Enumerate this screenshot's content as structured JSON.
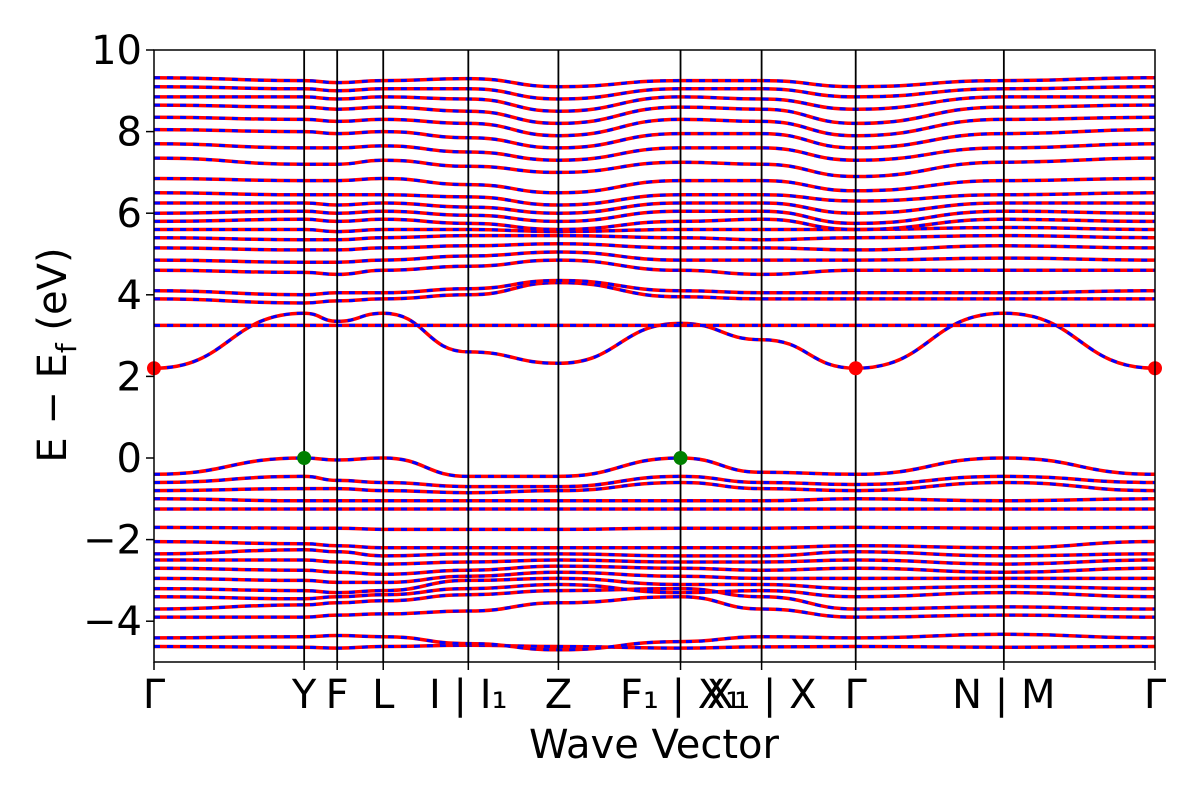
{
  "chart_data": {
    "type": "line",
    "title": "",
    "xlabel": "Wave Vector",
    "ylabel": "E − E",
    "ylabel_subscript": "f",
    "ylabel_unit": " (eV)",
    "ylim": [
      -5,
      10
    ],
    "yticks": [
      {
        "value": 10,
        "label": "10"
      },
      {
        "value": 8,
        "label": "8"
      },
      {
        "value": 6,
        "label": "6"
      },
      {
        "value": 4,
        "label": "4"
      },
      {
        "value": 2,
        "label": "2"
      },
      {
        "value": 0,
        "label": "0"
      },
      {
        "value": -2,
        "label": "−2"
      },
      {
        "value": -4,
        "label": "−4"
      }
    ],
    "xlim": [
      0,
      10
    ],
    "kpoints": [
      {
        "x": 0.0,
        "label": "Γ"
      },
      {
        "x": 1.5,
        "label": "Y"
      },
      {
        "x": 1.83,
        "label": "F"
      },
      {
        "x": 2.29,
        "label": "L"
      },
      {
        "x": 3.14,
        "label": "I | I₁"
      },
      {
        "x": 4.04,
        "label": "Z"
      },
      {
        "x": 5.26,
        "label": "F₁ | X₁"
      },
      {
        "x": 6.07,
        "label": "X₁ | X"
      },
      {
        "x": 7.01,
        "label": "Γ"
      },
      {
        "x": 8.49,
        "label": "N | M"
      },
      {
        "x": 10.0,
        "label": "Γ"
      }
    ],
    "band_style": {
      "spin_up_color": "#ff0000",
      "spin_down_color": "#0000ff",
      "spin_down_dashed": true
    },
    "vbm_points": [
      {
        "x": 1.5,
        "y": 0.0
      },
      {
        "x": 5.26,
        "y": 0.0
      }
    ],
    "cbm_points": [
      {
        "x": 0.0,
        "y": 2.2
      },
      {
        "x": 7.01,
        "y": 2.2
      },
      {
        "x": 10.0,
        "y": 2.2
      }
    ],
    "marker_colors": {
      "vbm": "#008000",
      "cbm": "#ff0000"
    },
    "bands": [
      {
        "name": "band-1",
        "values": [
          -4.62,
          -4.64,
          -4.66,
          -4.62,
          -4.59,
          -4.62,
          -4.66,
          -4.63,
          -4.62,
          -4.64,
          -4.62
        ]
      },
      {
        "name": "band-2",
        "values": [
          -4.41,
          -4.38,
          -4.35,
          -4.38,
          -4.55,
          -4.7,
          -4.5,
          -4.38,
          -4.41,
          -4.32,
          -4.41
        ]
      },
      {
        "name": "band-3",
        "values": [
          -3.9,
          -3.9,
          -3.85,
          -3.82,
          -3.75,
          -3.55,
          -3.4,
          -3.7,
          -3.9,
          -3.85,
          -3.9
        ]
      },
      {
        "name": "band-4",
        "values": [
          -3.7,
          -3.6,
          -3.55,
          -3.5,
          -3.35,
          -3.25,
          -3.2,
          -3.4,
          -3.7,
          -3.65,
          -3.7
        ]
      },
      {
        "name": "band-5",
        "values": [
          -3.4,
          -3.45,
          -3.4,
          -3.35,
          -3.2,
          -3.1,
          -3.3,
          -3.25,
          -3.4,
          -3.3,
          -3.4
        ]
      },
      {
        "name": "band-6",
        "values": [
          -3.2,
          -3.25,
          -3.3,
          -3.25,
          -3.0,
          -2.95,
          -3.1,
          -3.1,
          -3.2,
          -3.15,
          -3.2
        ]
      },
      {
        "name": "band-7",
        "values": [
          -2.95,
          -3.0,
          -3.05,
          -3.05,
          -2.9,
          -2.8,
          -2.9,
          -2.95,
          -2.95,
          -2.95,
          -2.95
        ]
      },
      {
        "name": "band-8",
        "values": [
          -2.7,
          -2.75,
          -2.8,
          -2.85,
          -2.75,
          -2.65,
          -2.7,
          -2.75,
          -2.7,
          -2.8,
          -2.7
        ]
      },
      {
        "name": "band-9",
        "values": [
          -2.5,
          -2.5,
          -2.55,
          -2.6,
          -2.55,
          -2.5,
          -2.55,
          -2.55,
          -2.5,
          -2.6,
          -2.5
        ]
      },
      {
        "name": "band-10",
        "values": [
          -2.35,
          -2.25,
          -2.3,
          -2.4,
          -2.35,
          -2.35,
          -2.4,
          -2.4,
          -2.3,
          -2.4,
          -2.35
        ]
      },
      {
        "name": "band-11",
        "values": [
          -2.05,
          -2.1,
          -2.15,
          -2.2,
          -2.2,
          -2.2,
          -2.2,
          -2.2,
          -2.15,
          -2.2,
          -2.05
        ]
      },
      {
        "name": "band-12",
        "values": [
          -1.7,
          -1.72,
          -1.72,
          -1.75,
          -1.75,
          -1.75,
          -1.72,
          -1.72,
          -1.7,
          -1.72,
          -1.7
        ]
      },
      {
        "name": "band-13",
        "values": [
          -1.25,
          -1.25,
          -1.25,
          -1.25,
          -1.25,
          -1.25,
          -1.25,
          -1.25,
          -1.25,
          -1.25,
          -1.25
        ]
      },
      {
        "name": "band-14",
        "values": [
          -1.0,
          -1.05,
          -1.05,
          -1.05,
          -1.05,
          -1.05,
          -1.05,
          -1.05,
          -1.0,
          -1.05,
          -1.0
        ]
      },
      {
        "name": "band-15",
        "values": [
          -0.8,
          -0.75,
          -0.75,
          -0.8,
          -0.85,
          -0.8,
          -0.6,
          -0.75,
          -0.8,
          -0.6,
          -0.8
        ]
      },
      {
        "name": "band-16",
        "values": [
          -0.6,
          -0.45,
          -0.55,
          -0.6,
          -0.7,
          -0.7,
          -0.45,
          -0.6,
          -0.65,
          -0.45,
          -0.6
        ]
      },
      {
        "name": "band-17",
        "values": [
          -0.4,
          0.0,
          -0.05,
          0.0,
          -0.45,
          -0.45,
          0.0,
          -0.35,
          -0.4,
          0.0,
          -0.4
        ]
      },
      {
        "name": "band-18",
        "values": [
          2.2,
          3.55,
          3.35,
          3.55,
          2.6,
          2.32,
          3.3,
          2.9,
          2.2,
          3.55,
          2.2
        ]
      },
      {
        "name": "band-19",
        "values": [
          3.25,
          3.25,
          3.25,
          3.25,
          3.25,
          3.25,
          3.25,
          3.25,
          3.25,
          3.25,
          3.25
        ]
      },
      {
        "name": "band-20",
        "values": [
          3.9,
          3.8,
          3.85,
          3.9,
          4.0,
          4.3,
          3.95,
          3.9,
          3.9,
          3.9,
          3.9
        ]
      },
      {
        "name": "band-21",
        "values": [
          4.1,
          4.0,
          4.05,
          4.05,
          4.15,
          4.35,
          4.1,
          4.05,
          4.05,
          4.05,
          4.1
        ]
      },
      {
        "name": "band-22",
        "values": [
          4.6,
          4.55,
          4.5,
          4.6,
          4.7,
          4.85,
          4.6,
          4.5,
          4.6,
          4.6,
          4.6
        ]
      },
      {
        "name": "band-23",
        "values": [
          4.85,
          4.8,
          4.8,
          4.85,
          4.95,
          5.05,
          4.85,
          4.85,
          4.85,
          4.9,
          4.85
        ]
      },
      {
        "name": "band-24",
        "values": [
          5.15,
          5.1,
          5.1,
          5.15,
          5.2,
          5.25,
          5.15,
          5.15,
          5.1,
          5.2,
          5.15
        ]
      },
      {
        "name": "band-25",
        "values": [
          5.4,
          5.35,
          5.35,
          5.4,
          5.45,
          5.45,
          5.4,
          5.35,
          5.4,
          5.45,
          5.4
        ]
      },
      {
        "name": "band-26",
        "values": [
          5.6,
          5.6,
          5.55,
          5.6,
          5.6,
          5.55,
          5.6,
          5.6,
          5.6,
          5.65,
          5.6
        ]
      },
      {
        "name": "band-27",
        "values": [
          5.8,
          5.85,
          5.8,
          5.85,
          5.75,
          5.6,
          5.8,
          5.85,
          5.6,
          5.85,
          5.8
        ]
      },
      {
        "name": "band-28",
        "values": [
          6.0,
          6.05,
          6.0,
          6.05,
          5.95,
          5.8,
          6.05,
          6.05,
          5.75,
          6.05,
          6.0
        ]
      },
      {
        "name": "band-29",
        "values": [
          6.25,
          6.25,
          6.2,
          6.25,
          6.15,
          6.0,
          6.25,
          6.25,
          6.0,
          6.25,
          6.25
        ]
      },
      {
        "name": "band-30",
        "values": [
          6.5,
          6.45,
          6.45,
          6.45,
          6.4,
          6.2,
          6.45,
          6.45,
          6.3,
          6.45,
          6.5
        ]
      },
      {
        "name": "band-31",
        "values": [
          6.85,
          6.8,
          6.8,
          6.85,
          6.7,
          6.5,
          6.8,
          6.8,
          6.55,
          6.8,
          6.85
        ]
      },
      {
        "name": "band-32",
        "values": [
          7.35,
          7.2,
          7.2,
          7.3,
          7.15,
          7.0,
          7.25,
          7.2,
          6.9,
          7.25,
          7.35
        ]
      },
      {
        "name": "band-33",
        "values": [
          7.7,
          7.6,
          7.6,
          7.65,
          7.5,
          7.3,
          7.6,
          7.6,
          7.3,
          7.6,
          7.7
        ]
      },
      {
        "name": "band-34",
        "values": [
          8.05,
          8.0,
          7.95,
          8.0,
          7.85,
          7.6,
          7.95,
          7.95,
          7.6,
          7.95,
          8.05
        ]
      },
      {
        "name": "band-35",
        "values": [
          8.35,
          8.3,
          8.25,
          8.3,
          8.2,
          7.9,
          8.3,
          8.25,
          7.9,
          8.3,
          8.35
        ]
      },
      {
        "name": "band-36",
        "values": [
          8.65,
          8.6,
          8.55,
          8.6,
          8.5,
          8.2,
          8.6,
          8.55,
          8.2,
          8.6,
          8.65
        ]
      },
      {
        "name": "band-37",
        "values": [
          8.85,
          8.85,
          8.8,
          8.85,
          8.8,
          8.5,
          8.85,
          8.8,
          8.55,
          8.85,
          8.85
        ]
      },
      {
        "name": "band-38",
        "values": [
          9.1,
          9.05,
          9.0,
          9.05,
          9.05,
          8.8,
          9.05,
          9.05,
          8.85,
          9.05,
          9.1
        ]
      },
      {
        "name": "band-39",
        "values": [
          9.32,
          9.25,
          9.2,
          9.25,
          9.3,
          9.1,
          9.25,
          9.25,
          9.1,
          9.25,
          9.32
        ]
      }
    ]
  }
}
